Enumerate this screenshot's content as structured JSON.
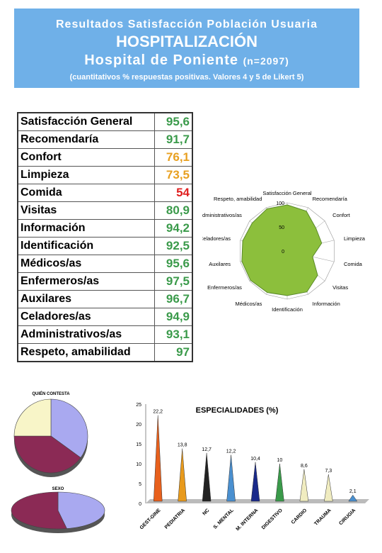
{
  "header": {
    "line1": "Resultados Satisfacción Población Usuaria",
    "line2": "HOSPITALIZACIÓN",
    "line3": "Hospital de Poniente",
    "line3_n": "(n=2097)",
    "line4": "(cuantitativos % respuestas positivas. Valores 4 y 5 de Likert 5)"
  },
  "scores": [
    {
      "label": "Satisfacción General",
      "value": "95,6",
      "color": "#3a9a4a"
    },
    {
      "label": "Recomendaría",
      "value": "91,7",
      "color": "#3a9a4a"
    },
    {
      "label": "Confort",
      "value": "76,1",
      "color": "#e8a020"
    },
    {
      "label": "Limpieza",
      "value": "73,5",
      "color": "#e8a020"
    },
    {
      "label": "Comida",
      "value": "54",
      "color": "#e02020"
    },
    {
      "label": "Visitas",
      "value": "80,9",
      "color": "#3a9a4a"
    },
    {
      "label": "Información",
      "value": "94,2",
      "color": "#3a9a4a"
    },
    {
      "label": "Identificación",
      "value": "92,5",
      "color": "#3a9a4a"
    },
    {
      "label": "Médicos/as",
      "value": "95,6",
      "color": "#3a9a4a"
    },
    {
      "label": "Enfermeros/as",
      "value": "97,5",
      "color": "#3a9a4a"
    },
    {
      "label": "Auxilares",
      "value": "96,7",
      "color": "#3a9a4a"
    },
    {
      "label": "Celadores/as",
      "value": "94,9",
      "color": "#3a9a4a"
    },
    {
      "label": "Administrativos/as",
      "value": "93,1",
      "color": "#3a9a4a"
    },
    {
      "label": "Respeto, amabilidad",
      "value": "97",
      "color": "#3a9a4a"
    }
  ],
  "chart_data": [
    {
      "type": "radar",
      "axes": [
        "Satisfacción General",
        "Recomendaría",
        "Confort",
        "Limpieza",
        "Comida",
        "Visitas",
        "Información",
        "Identificación",
        "Médicos/as",
        "Enfermeros/as",
        "Auxilares",
        "Celadores/as",
        "Administrativos/as",
        "Respeto, amabilidad"
      ],
      "values": [
        95.6,
        91.7,
        76.1,
        73.5,
        54,
        80.9,
        94.2,
        92.5,
        95.6,
        97.5,
        96.7,
        94.9,
        93.1,
        97
      ],
      "ticks": [
        "100",
        "50",
        "0"
      ],
      "range": [
        0,
        100
      ],
      "fill": "#8cbf3c"
    },
    {
      "type": "pie",
      "title": "QUIÉN CONTESTA",
      "slices": [
        {
          "value": 35,
          "color": "#a9a9f0"
        },
        {
          "value": 40,
          "color": "#8b2a55"
        },
        {
          "value": 25,
          "color": "#f8f5c8"
        }
      ]
    },
    {
      "type": "pie",
      "title": "SEXO",
      "slices": [
        {
          "value": 47,
          "color": "#a9a9f0"
        },
        {
          "value": 53,
          "color": "#8b2a55"
        }
      ]
    },
    {
      "type": "bar",
      "title": "ESPECIALIDADES (%)",
      "categories": [
        "GEST-GINE",
        "PEDIATRIA",
        "NC",
        "S. MENTAL",
        "M. INTERNA",
        "DIGESTIVO",
        "CARDIO",
        "TRAUMA",
        "CIRUGIA"
      ],
      "values": [
        22.2,
        13.8,
        12.7,
        12.2,
        10.4,
        10,
        8.6,
        7.3,
        2.1
      ],
      "value_labels": [
        "22,2",
        "13,8",
        "12,7",
        "12,2",
        "10,4",
        "10",
        "8,6",
        "7,3",
        "2,1"
      ],
      "colors": [
        "#e8601c",
        "#e89a1c",
        "#222222",
        "#4a90d0",
        "#1a2a8a",
        "#3a9a4a",
        "#f0ecc0",
        "#f0ecc0",
        "#4a90d0"
      ],
      "yticks": [
        "0",
        "5",
        "10",
        "15",
        "20",
        "25"
      ],
      "ylim": [
        0,
        25
      ]
    }
  ]
}
